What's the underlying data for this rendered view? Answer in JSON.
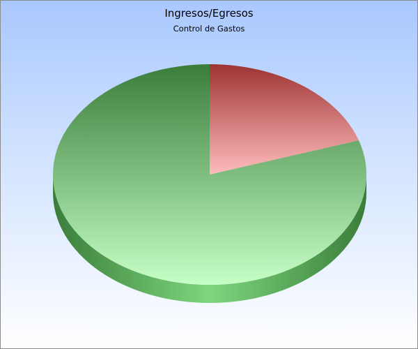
{
  "chart_data": {
    "type": "pie",
    "title": "Ingresos/Egresos",
    "subtitle": "Control de Gastos",
    "slices": [
      {
        "value": 20,
        "color": "#e06666",
        "light": "#ffbcbc",
        "dark": "#9e3333"
      },
      {
        "value": 80,
        "color": "#7ed67e",
        "light": "#c6ffc6",
        "dark": "#3a7d3a"
      }
    ],
    "legend": "none",
    "style": "3d"
  }
}
